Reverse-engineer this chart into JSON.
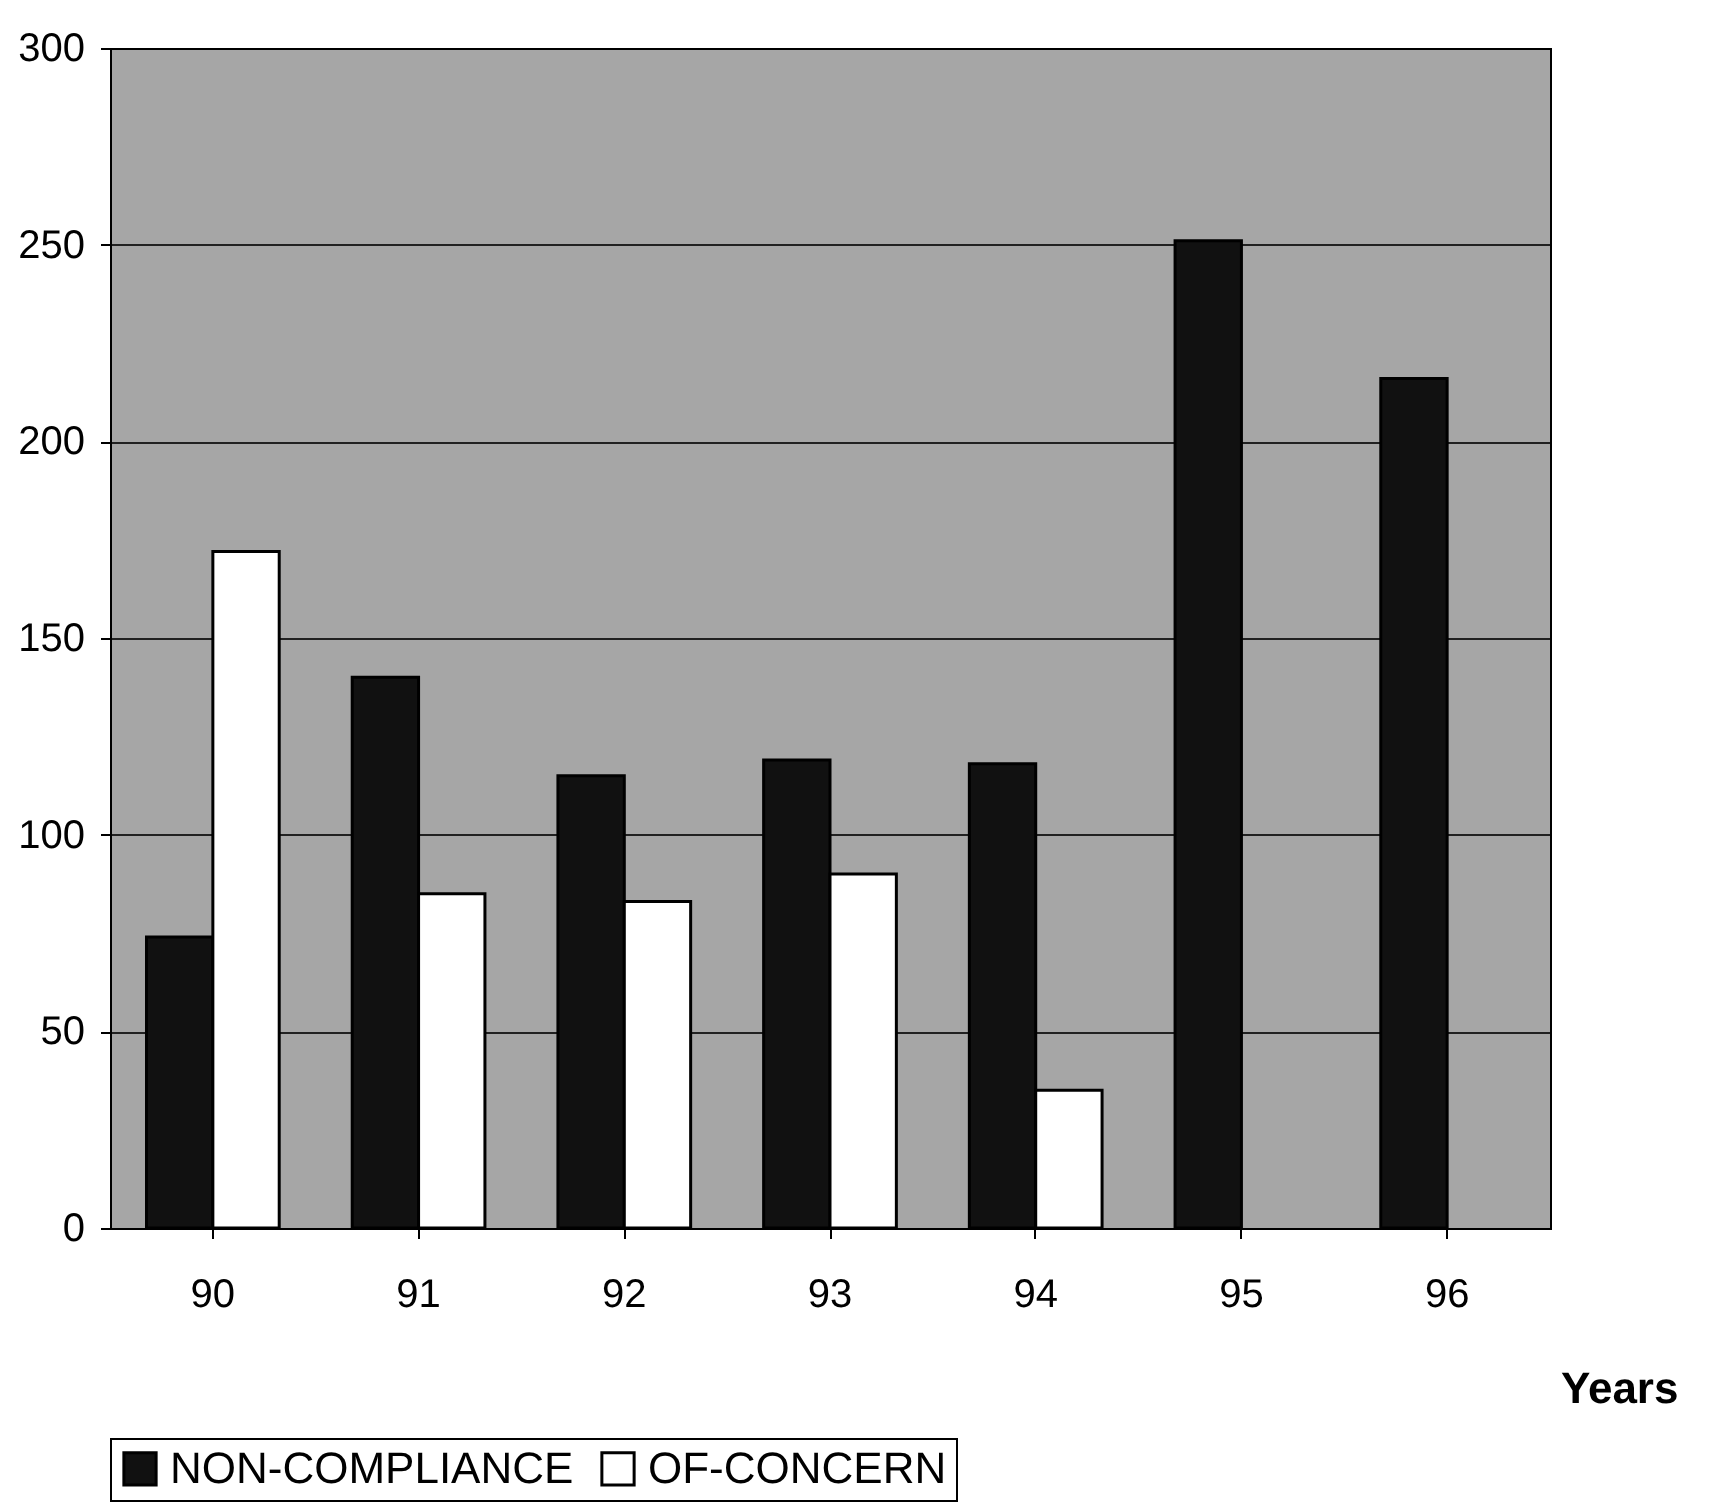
{
  "chart_data": {
    "type": "bar",
    "xlabel": "Years",
    "categories": [
      "90",
      "91",
      "92",
      "93",
      "94",
      "95",
      "96"
    ],
    "series": [
      {
        "name": "NON-COMPLIANCE",
        "color": "#111111",
        "values": [
          74,
          140,
          115,
          119,
          118,
          251,
          216
        ]
      },
      {
        "name": "OF-CONCERN",
        "color": "#ffffff",
        "values": [
          172,
          85,
          83,
          90,
          35,
          null,
          null
        ]
      }
    ],
    "ylim": [
      0,
      300
    ],
    "yticks": [
      0,
      50,
      100,
      150,
      200,
      250,
      300
    ],
    "grid": "y",
    "legend": "bottom"
  }
}
